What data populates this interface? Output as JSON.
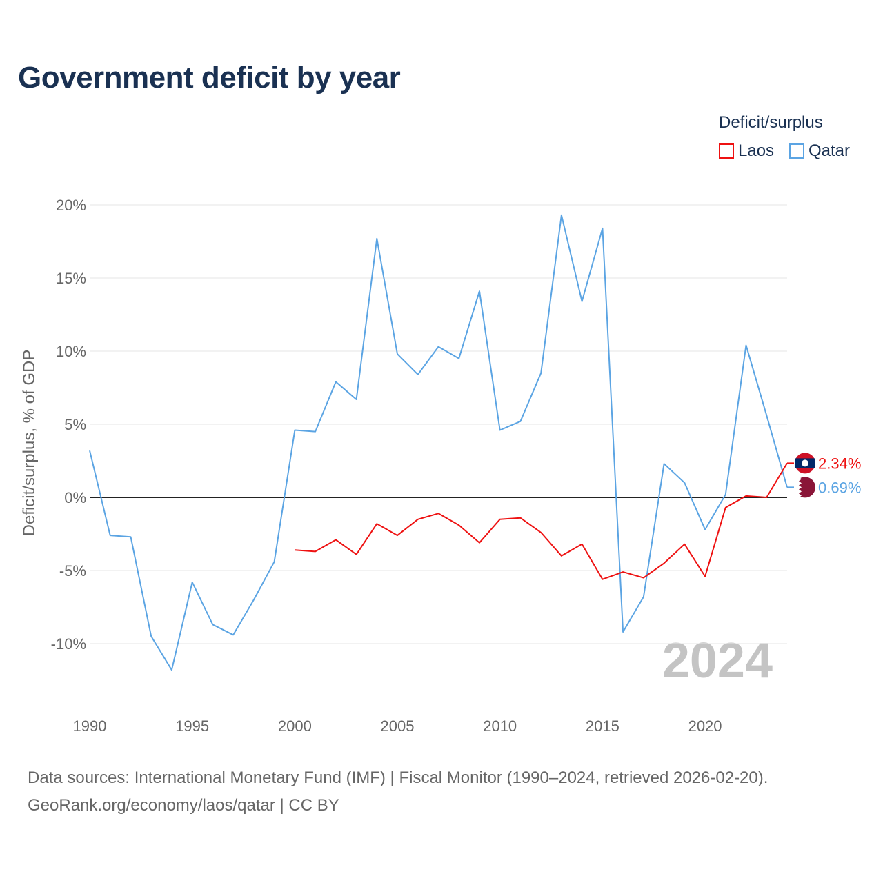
{
  "title": "Government deficit by year",
  "legend": {
    "title": "Deficit/surplus",
    "items": [
      {
        "label": "Laos",
        "color": "#ee1111"
      },
      {
        "label": "Qatar",
        "color": "#5ba4e3"
      }
    ]
  },
  "source": {
    "line1": "Data sources: International Monetary Fund (IMF) | Fiscal Monitor (1990–2024, retrieved 2026-02-20).",
    "line2": "GeoRank.org/economy/laos/qatar | CC BY"
  },
  "chart_data": {
    "type": "line",
    "title": "Government deficit by year",
    "ylabel": "Deficit/surplus, % of GDP",
    "xlabel": "",
    "xlim": [
      1990,
      2024
    ],
    "ylim": [
      -12.5,
      20
    ],
    "x_ticks": [
      "1990",
      "1995",
      "2000",
      "2005",
      "2010",
      "2015",
      "2020"
    ],
    "y_ticks": [
      {
        "value": 20,
        "label": "20%"
      },
      {
        "value": 15,
        "label": "15%"
      },
      {
        "value": 10,
        "label": "10%"
      },
      {
        "value": 5,
        "label": "5%"
      },
      {
        "value": 0,
        "label": "0%"
      },
      {
        "value": -5,
        "label": "-5%"
      },
      {
        "value": -10,
        "label": "-10%"
      }
    ],
    "watermark_year": "2024",
    "series": [
      {
        "name": "Qatar",
        "color": "#5ba4e3",
        "end_label": "0.69%",
        "x": [
          1990,
          1991,
          1992,
          1993,
          1994,
          1995,
          1996,
          1997,
          1998,
          1999,
          2000,
          2001,
          2002,
          2003,
          2004,
          2005,
          2006,
          2007,
          2008,
          2009,
          2010,
          2011,
          2012,
          2013,
          2014,
          2015,
          2016,
          2017,
          2018,
          2019,
          2020,
          2021,
          2022,
          2023,
          2024
        ],
        "values": [
          3.2,
          -2.6,
          -2.7,
          -9.5,
          -11.8,
          -5.8,
          -8.7,
          -9.4,
          -7.0,
          -4.4,
          4.6,
          4.5,
          7.9,
          6.7,
          17.7,
          9.8,
          8.4,
          10.3,
          9.5,
          14.1,
          4.6,
          5.2,
          8.5,
          19.3,
          13.4,
          18.4,
          -9.2,
          -6.8,
          2.3,
          1.0,
          -2.2,
          0.2,
          10.4,
          5.6,
          0.69
        ]
      },
      {
        "name": "Laos",
        "color": "#ee1111",
        "end_label": "2.34%",
        "x": [
          2000,
          2001,
          2002,
          2003,
          2004,
          2005,
          2006,
          2007,
          2008,
          2009,
          2010,
          2011,
          2012,
          2013,
          2014,
          2015,
          2016,
          2017,
          2018,
          2019,
          2020,
          2021,
          2022,
          2023,
          2024
        ],
        "values": [
          -3.6,
          -3.7,
          -2.9,
          -3.9,
          -1.8,
          -2.6,
          -1.5,
          -1.1,
          -1.9,
          -3.1,
          -1.5,
          -1.4,
          -2.4,
          -4.0,
          -3.2,
          -5.6,
          -5.1,
          -5.5,
          -4.5,
          -3.2,
          -5.4,
          -0.7,
          0.1,
          0.0,
          2.34
        ]
      }
    ]
  }
}
